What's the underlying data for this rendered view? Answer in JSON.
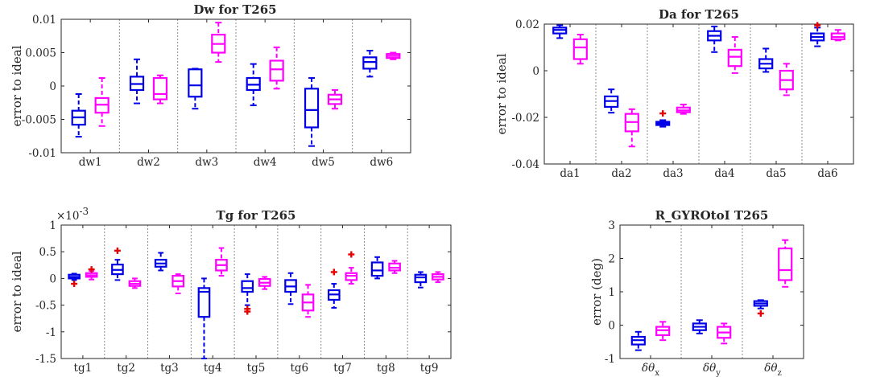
{
  "colors": {
    "series1": "#0000e6",
    "series2": "#ff00ff",
    "outlier": "#e60000",
    "separator": "#8c8c8c",
    "axis": "#262626"
  },
  "chart_data": [
    {
      "type": "boxplot",
      "title": "Dw for T265",
      "ylabel": "error to ideal",
      "ylim": [
        -0.01,
        0.01
      ],
      "yticks": [
        "-0.01",
        "-0.005",
        "0",
        "0.005",
        "0.01"
      ],
      "categories": [
        "dw1",
        "dw2",
        "dw3",
        "dw4",
        "dw5",
        "dw6"
      ],
      "series": [
        {
          "color": "series1",
          "boxes": [
            {
              "min": -0.0076,
              "q1": -0.0058,
              "median": -0.0047,
              "q3": -0.0037,
              "max": -0.0012,
              "outliers": []
            },
            {
              "min": -0.0026,
              "q1": -0.0006,
              "median": 0.0003,
              "q3": 0.0014,
              "max": 0.004,
              "outliers": []
            },
            {
              "min": -0.0034,
              "q1": -0.0016,
              "median": 0.0001,
              "q3": 0.0025,
              "max": 0.0026,
              "outliers": []
            },
            {
              "min": -0.0029,
              "q1": -0.0006,
              "median": 0.0002,
              "q3": 0.0012,
              "max": 0.0033,
              "outliers": []
            },
            {
              "min": -0.009,
              "q1": -0.0062,
              "median": -0.0036,
              "q3": -0.0004,
              "max": 0.0012,
              "outliers": []
            },
            {
              "min": 0.0014,
              "q1": 0.0026,
              "median": 0.0036,
              "q3": 0.0043,
              "max": 0.0053,
              "outliers": []
            }
          ]
        },
        {
          "color": "series2",
          "boxes": [
            {
              "min": -0.006,
              "q1": -0.004,
              "median": -0.0028,
              "q3": -0.0018,
              "max": 0.0012,
              "outliers": []
            },
            {
              "min": -0.0026,
              "q1": -0.002,
              "median": -0.0012,
              "q3": 0.0012,
              "max": 0.0016,
              "outliers": []
            },
            {
              "min": 0.0036,
              "q1": 0.005,
              "median": 0.0063,
              "q3": 0.0077,
              "max": 0.0095,
              "outliers": []
            },
            {
              "min": -0.0004,
              "q1": 0.0008,
              "median": 0.0025,
              "q3": 0.0038,
              "max": 0.0058,
              "outliers": []
            },
            {
              "min": -0.0034,
              "q1": -0.0027,
              "median": -0.002,
              "q3": -0.0013,
              "max": -0.0006,
              "outliers": []
            },
            {
              "min": 0.004,
              "q1": 0.0042,
              "median": 0.0045,
              "q3": 0.0048,
              "max": 0.005,
              "outliers": []
            }
          ]
        }
      ]
    },
    {
      "type": "boxplot",
      "title": "Da for T265",
      "ylabel": "error to ideal",
      "ylim": [
        -0.04,
        0.02
      ],
      "yticks": [
        "-0.04",
        "-0.02",
        "0",
        "0.02"
      ],
      "categories": [
        "da1",
        "da2",
        "da3",
        "da4",
        "da5",
        "da6"
      ],
      "series": [
        {
          "color": "series1",
          "boxes": [
            {
              "min": 0.014,
              "q1": 0.016,
              "median": 0.0175,
              "q3": 0.0185,
              "max": 0.0195,
              "outliers": []
            },
            {
              "min": -0.018,
              "q1": -0.0155,
              "median": -0.013,
              "q3": -0.011,
              "max": -0.008,
              "outliers": []
            },
            {
              "min": -0.024,
              "q1": -0.0233,
              "median": -0.0226,
              "q3": -0.0219,
              "max": -0.0212,
              "outliers": []
            },
            {
              "min": 0.008,
              "q1": 0.013,
              "median": 0.015,
              "q3": 0.017,
              "max": 0.019,
              "outliers": []
            },
            {
              "min": -0.0005,
              "q1": 0.001,
              "median": 0.003,
              "q3": 0.005,
              "max": 0.0095,
              "outliers": []
            },
            {
              "min": 0.0105,
              "q1": 0.013,
              "median": 0.0145,
              "q3": 0.016,
              "max": 0.0185,
              "outliers": []
            }
          ]
        },
        {
          "color": "series2",
          "boxes": [
            {
              "min": 0.003,
              "q1": 0.005,
              "median": 0.01,
              "q3": 0.0135,
              "max": 0.0155,
              "outliers": []
            },
            {
              "min": -0.0325,
              "q1": -0.026,
              "median": -0.022,
              "q3": -0.0185,
              "max": -0.0165,
              "outliers": []
            },
            {
              "min": -0.0185,
              "q1": -0.0178,
              "median": -0.017,
              "q3": -0.0158,
              "max": -0.0145,
              "outliers": []
            },
            {
              "min": -0.001,
              "q1": 0.002,
              "median": 0.006,
              "q3": 0.009,
              "max": 0.0145,
              "outliers": []
            },
            {
              "min": -0.0105,
              "q1": -0.008,
              "median": -0.004,
              "q3": 0.0,
              "max": 0.003,
              "outliers": []
            },
            {
              "min": 0.013,
              "q1": 0.0135,
              "median": 0.0145,
              "q3": 0.016,
              "max": 0.0175,
              "outliers": []
            }
          ]
        }
      ],
      "outliers": [
        {
          "category": 2,
          "series": 0,
          "value": -0.0183
        },
        {
          "category": 5,
          "series": 0,
          "value": 0.0195
        }
      ]
    },
    {
      "type": "boxplot",
      "title": "Tg for T265",
      "ylabel": "error to ideal",
      "exponent": "×10",
      "exponent_power": "-3",
      "ylim": [
        -1.5,
        1
      ],
      "yticks": [
        "-1.5",
        "-1",
        "-0.5",
        "0",
        "0.5",
        "1"
      ],
      "categories": [
        "tg1",
        "tg2",
        "tg3",
        "tg4",
        "tg5",
        "tg6",
        "tg7",
        "tg8",
        "tg9"
      ],
      "series": [
        {
          "color": "series1",
          "boxes": [
            {
              "min": -0.03,
              "q1": 0.0,
              "median": 0.03,
              "q3": 0.07,
              "max": 0.09
            },
            {
              "min": -0.03,
              "q1": 0.08,
              "median": 0.16,
              "q3": 0.26,
              "max": 0.35
            },
            {
              "min": 0.15,
              "q1": 0.22,
              "median": 0.28,
              "q3": 0.35,
              "max": 0.48
            },
            {
              "min": -1.5,
              "q1": -0.72,
              "median": -0.25,
              "q3": -0.18,
              "max": 0.0
            },
            {
              "min": -0.5,
              "q1": -0.25,
              "median": -0.18,
              "q3": -0.05,
              "max": 0.08
            },
            {
              "min": -0.48,
              "q1": -0.25,
              "median": -0.15,
              "q3": -0.03,
              "max": 0.1
            },
            {
              "min": -0.55,
              "q1": -0.4,
              "median": -0.3,
              "q3": -0.22,
              "max": -0.1
            },
            {
              "min": 0.0,
              "q1": 0.05,
              "median": 0.15,
              "q3": 0.3,
              "max": 0.4
            },
            {
              "min": -0.17,
              "q1": -0.07,
              "median": 0.02,
              "q3": 0.07,
              "max": 0.12
            }
          ]
        },
        {
          "color": "series2",
          "boxes": [
            {
              "min": -0.02,
              "q1": 0.03,
              "median": 0.06,
              "q3": 0.1,
              "max": 0.14
            },
            {
              "min": -0.18,
              "q1": -0.14,
              "median": -0.1,
              "q3": -0.05,
              "max": 0.0
            },
            {
              "min": -0.28,
              "q1": -0.15,
              "median": -0.05,
              "q3": 0.05,
              "max": 0.08
            },
            {
              "min": 0.05,
              "q1": 0.15,
              "median": 0.25,
              "q3": 0.35,
              "max": 0.57
            },
            {
              "min": -0.2,
              "q1": -0.14,
              "median": -0.08,
              "q3": -0.01,
              "max": 0.03
            },
            {
              "min": -0.72,
              "q1": -0.6,
              "median": -0.45,
              "q3": -0.3,
              "max": -0.12
            },
            {
              "min": -0.1,
              "q1": -0.03,
              "median": 0.05,
              "q3": 0.1,
              "max": 0.2
            },
            {
              "min": 0.1,
              "q1": 0.15,
              "median": 0.2,
              "q3": 0.28,
              "max": 0.33
            },
            {
              "min": -0.07,
              "q1": -0.02,
              "median": 0.03,
              "q3": 0.08,
              "max": 0.12
            }
          ]
        }
      ],
      "outliers": [
        {
          "category": 0,
          "series": 0,
          "value": -0.1
        },
        {
          "category": 0,
          "series": 1,
          "value": 0.17
        },
        {
          "category": 1,
          "series": 0,
          "value": 0.52
        },
        {
          "category": 4,
          "series": 0,
          "value": -0.57
        },
        {
          "category": 4,
          "series": 0,
          "value": -0.62
        },
        {
          "category": 6,
          "series": 0,
          "value": 0.12
        },
        {
          "category": 6,
          "series": 1,
          "value": 0.45
        }
      ]
    },
    {
      "type": "boxplot",
      "title": "R_GYROtoI T265",
      "ylabel": "error (deg)",
      "ylim": [
        -1,
        3
      ],
      "yticks": [
        "-1",
        "0",
        "1",
        "2",
        "3"
      ],
      "categories": [
        "δθ",
        "δθ",
        "δθ"
      ],
      "category_subscripts": [
        "x",
        "y",
        "z"
      ],
      "series": [
        {
          "color": "series1",
          "boxes": [
            {
              "min": -0.75,
              "q1": -0.58,
              "median": -0.45,
              "q3": -0.35,
              "max": -0.2
            },
            {
              "min": -0.25,
              "q1": -0.15,
              "median": -0.05,
              "q3": 0.05,
              "max": 0.15
            },
            {
              "min": 0.5,
              "q1": 0.58,
              "median": 0.65,
              "q3": 0.72,
              "max": 0.75
            }
          ]
        },
        {
          "color": "series2",
          "boxes": [
            {
              "min": -0.45,
              "q1": -0.3,
              "median": -0.15,
              "q3": -0.05,
              "max": 0.1
            },
            {
              "min": -0.55,
              "q1": -0.38,
              "median": -0.22,
              "q3": -0.05,
              "max": 0.05
            },
            {
              "min": 1.15,
              "q1": 1.35,
              "median": 1.65,
              "q3": 2.3,
              "max": 2.55
            }
          ]
        }
      ],
      "outliers": [
        {
          "category": 2,
          "series": 0,
          "value": 0.35
        }
      ]
    }
  ]
}
